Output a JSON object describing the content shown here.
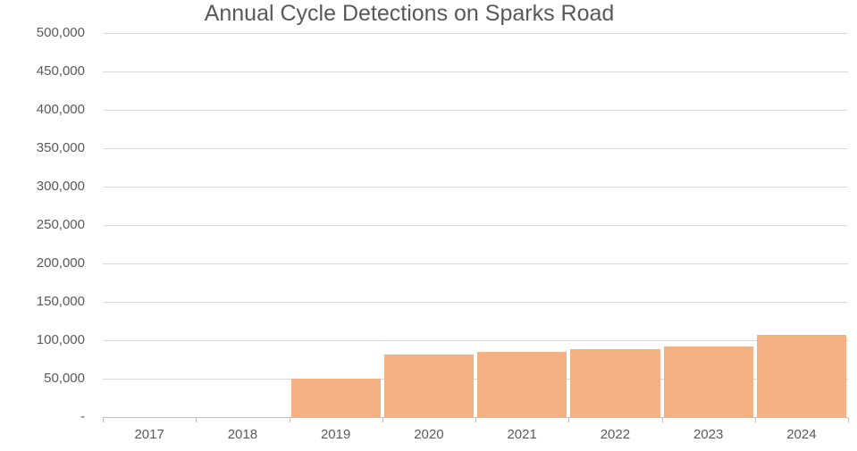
{
  "chart_data": {
    "type": "bar",
    "title": "Annual Cycle Detections on Sparks Road",
    "categories": [
      "2017",
      "2018",
      "2019",
      "2020",
      "2021",
      "2022",
      "2023",
      "2024"
    ],
    "values": [
      0,
      0,
      50500,
      81000,
      85000,
      88000,
      92000,
      107000
    ],
    "xlabel": "",
    "ylabel": "",
    "ylim": [
      0,
      500000
    ],
    "y_tick_step": 50000,
    "y_tick_labels": [
      "-",
      "50,000",
      "100,000",
      "150,000",
      "200,000",
      "250,000",
      "300,000",
      "350,000",
      "400,000",
      "450,000",
      "500,000"
    ],
    "grid": true,
    "legend": "none",
    "colors": {
      "bar_fill": "#F4B183",
      "gridline": "#D9D9D9",
      "axis_line": "#BFBFBF",
      "text": "#595959",
      "background": "#FFFFFF"
    }
  }
}
